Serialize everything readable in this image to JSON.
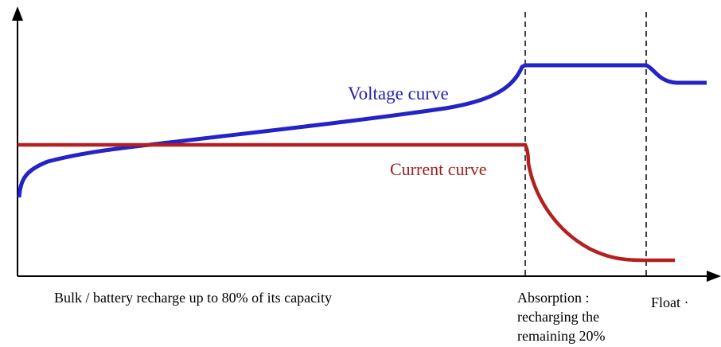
{
  "curves": {
    "voltage": "Voltage curve",
    "current": "Current curve"
  },
  "phases": {
    "bulk": "Bulk / battery recharge up to 80% of its capacity",
    "absorption": [
      "Absorption :",
      "recharging the",
      "remaining 20%"
    ],
    "float": "Float ·"
  }
}
